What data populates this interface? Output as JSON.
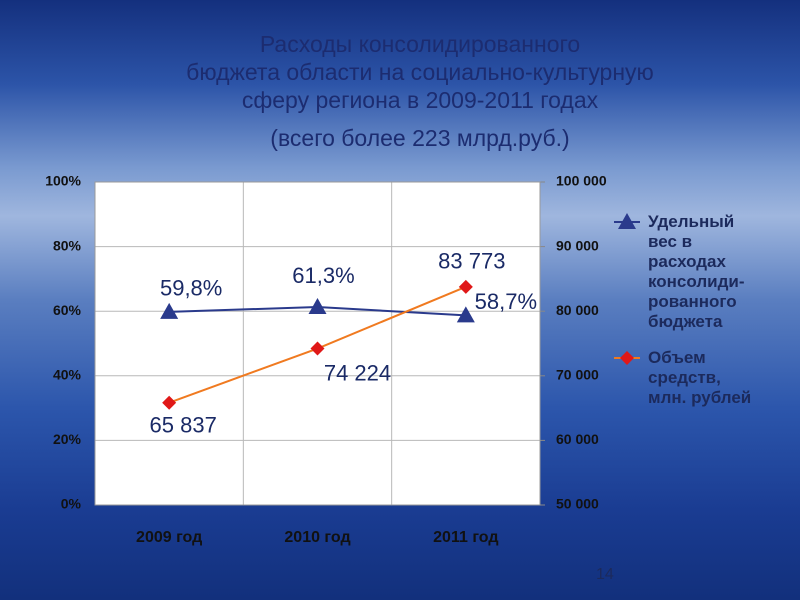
{
  "chart_data": {
    "type": "line",
    "title_lines": [
      "Расходы консолидированного",
      "бюджета области на социально-культурную",
      "сферу региона в 2009-2011 годах"
    ],
    "subtitle": "(всего более 223 млрд.руб.)",
    "categories": [
      "2009 год",
      "2010 год",
      "2011 год"
    ],
    "series": [
      {
        "name": "Удельный вес в расходах консолиди-рованного бюджета",
        "color": "#2a3a8c",
        "marker": "triangle",
        "values": [
          59.8,
          61.3,
          58.7
        ],
        "value_labels": [
          "59,8%",
          "61,3%",
          "58,7%"
        ]
      },
      {
        "name": "Объем средств, млн. рублей",
        "color": "#f07a20",
        "marker_color": "#e01818",
        "marker": "diamond",
        "axis": "y2",
        "values": [
          65837,
          74224,
          83773
        ],
        "value_labels": [
          "65 837",
          "74 224",
          "83 773"
        ]
      }
    ],
    "ylim": [
      0,
      100
    ],
    "yticks": [
      {
        "value": 0,
        "label": "0%"
      },
      {
        "value": 20,
        "label": "20%"
      },
      {
        "value": 40,
        "label": "40%"
      },
      {
        "value": 60,
        "label": "60%"
      },
      {
        "value": 80,
        "label": "80%"
      },
      {
        "value": 100,
        "label": "100%"
      }
    ],
    "y2lim": [
      50000,
      100000
    ],
    "y2ticks": [
      {
        "value": 50000,
        "label": "50 000"
      },
      {
        "value": 60000,
        "label": "60 000"
      },
      {
        "value": 70000,
        "label": "70 000"
      },
      {
        "value": 80000,
        "label": "80 000"
      },
      {
        "value": 90000,
        "label": "90 000"
      },
      {
        "value": 100000,
        "label": "100 000"
      }
    ],
    "grid": true,
    "legend": "right"
  },
  "page_number": "14"
}
